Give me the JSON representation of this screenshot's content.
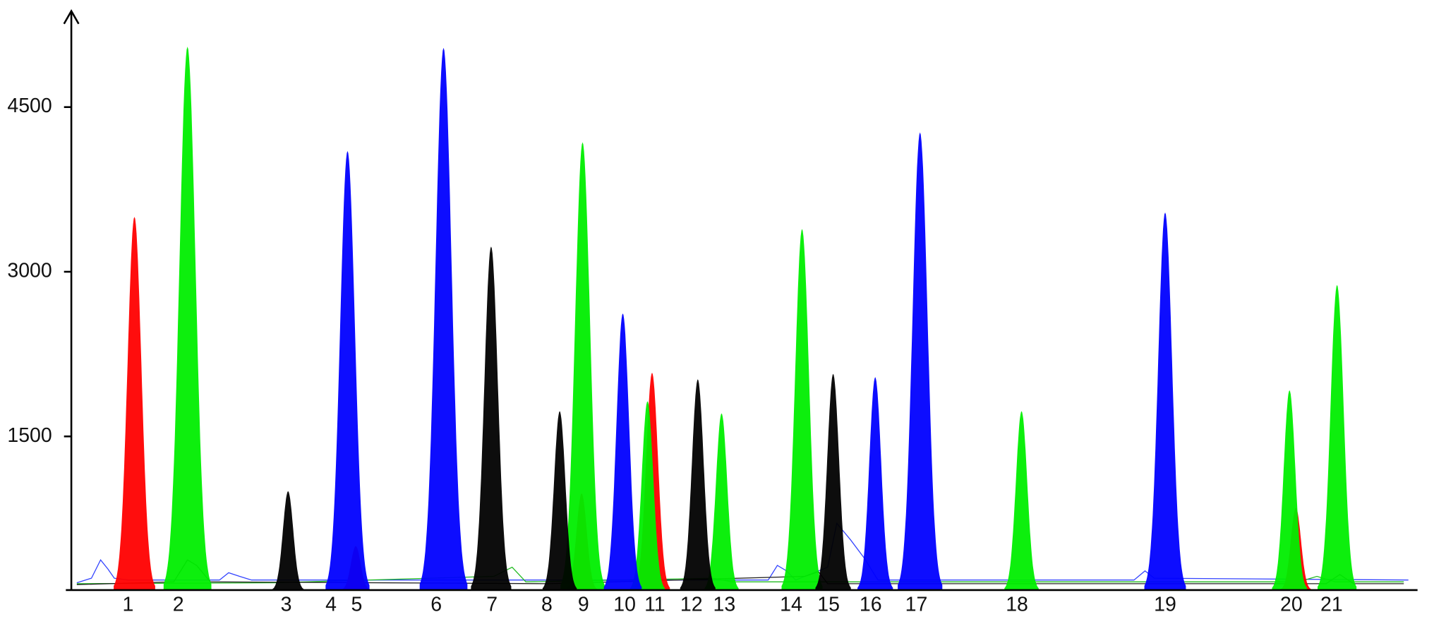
{
  "chart_data": {
    "type": "electropherogram",
    "categories": [
      "1",
      "2",
      "3",
      "4",
      "5",
      "6",
      "7",
      "8",
      "9",
      "10",
      "11",
      "12",
      "13",
      "14",
      "15",
      "16",
      "17",
      "18",
      "19",
      "20",
      "21"
    ],
    "ylim": [
      100,
      5350
    ],
    "yticks": [
      1500,
      3000,
      4500
    ],
    "series": [
      {
        "color": "#ff0000",
        "values": [
          3500,
          null,
          null,
          null,
          500,
          null,
          null,
          null,
          980,
          null,
          2080,
          null,
          null,
          null,
          null,
          null,
          null,
          null,
          null,
          850,
          null
        ]
      },
      {
        "color": "#00ee00",
        "values": [
          null,
          5050,
          null,
          null,
          null,
          null,
          null,
          null,
          4180,
          null,
          1820,
          null,
          1710,
          3390,
          null,
          null,
          null,
          1730,
          null,
          1920,
          2880
        ]
      },
      {
        "color": "#000000",
        "values": [
          null,
          null,
          1000,
          null,
          null,
          null,
          3230,
          1730,
          null,
          null,
          null,
          2020,
          null,
          null,
          2070,
          null,
          null,
          null,
          null,
          null,
          null
        ]
      },
      {
        "color": "#0000ff",
        "values": [
          null,
          null,
          null,
          4100,
          null,
          5040,
          null,
          null,
          null,
          2620,
          null,
          null,
          null,
          null,
          null,
          2040,
          4270,
          null,
          3540,
          null,
          null
        ]
      }
    ]
  }
}
